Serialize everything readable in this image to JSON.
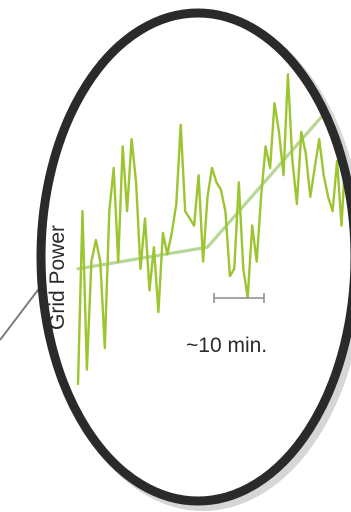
{
  "chart_data": {
    "type": "line",
    "title": "",
    "ylabel": "Grid Power",
    "xlabel": "",
    "annotations": [
      {
        "text": "~10 min."
      }
    ],
    "xlim": [
      0,
      60
    ],
    "ylim": [
      0,
      100
    ],
    "series": [
      {
        "values_x": [
          0,
          1,
          2,
          3,
          4,
          5,
          6,
          7,
          8,
          9,
          10,
          11,
          12,
          13,
          14,
          15,
          16,
          17,
          18,
          19,
          20,
          21,
          22,
          23,
          24,
          25,
          26,
          27,
          28,
          29,
          30,
          31,
          32,
          33,
          34,
          35,
          36,
          37,
          38,
          39,
          40,
          41,
          42,
          43,
          44,
          45,
          46,
          47,
          48,
          49,
          50,
          51,
          52,
          53,
          54,
          55,
          56,
          57,
          58,
          59,
          60
        ],
        "values": [
          10,
          58,
          14,
          44,
          50,
          44,
          20,
          58,
          70,
          44,
          76,
          58,
          78,
          66,
          42,
          56,
          36,
          48,
          30,
          52,
          46,
          52,
          60,
          82,
          58,
          56,
          54,
          68,
          44,
          62,
          70,
          66,
          64,
          58,
          40,
          42,
          66,
          42,
          34,
          54,
          44,
          62,
          76,
          70,
          88,
          80,
          68,
          96,
          72,
          60,
          80,
          74,
          62,
          70,
          78,
          68,
          62,
          58,
          72,
          54,
          76
        ]
      },
      {
        "values_x": [
          0,
          29,
          60
        ],
        "values": [
          42,
          48,
          92
        ]
      }
    ],
    "colors": {
      "signal": "#9cc531",
      "trend": "#b7d796",
      "rim": "#2a2a2a",
      "shadow": "#8a8a8a"
    }
  }
}
